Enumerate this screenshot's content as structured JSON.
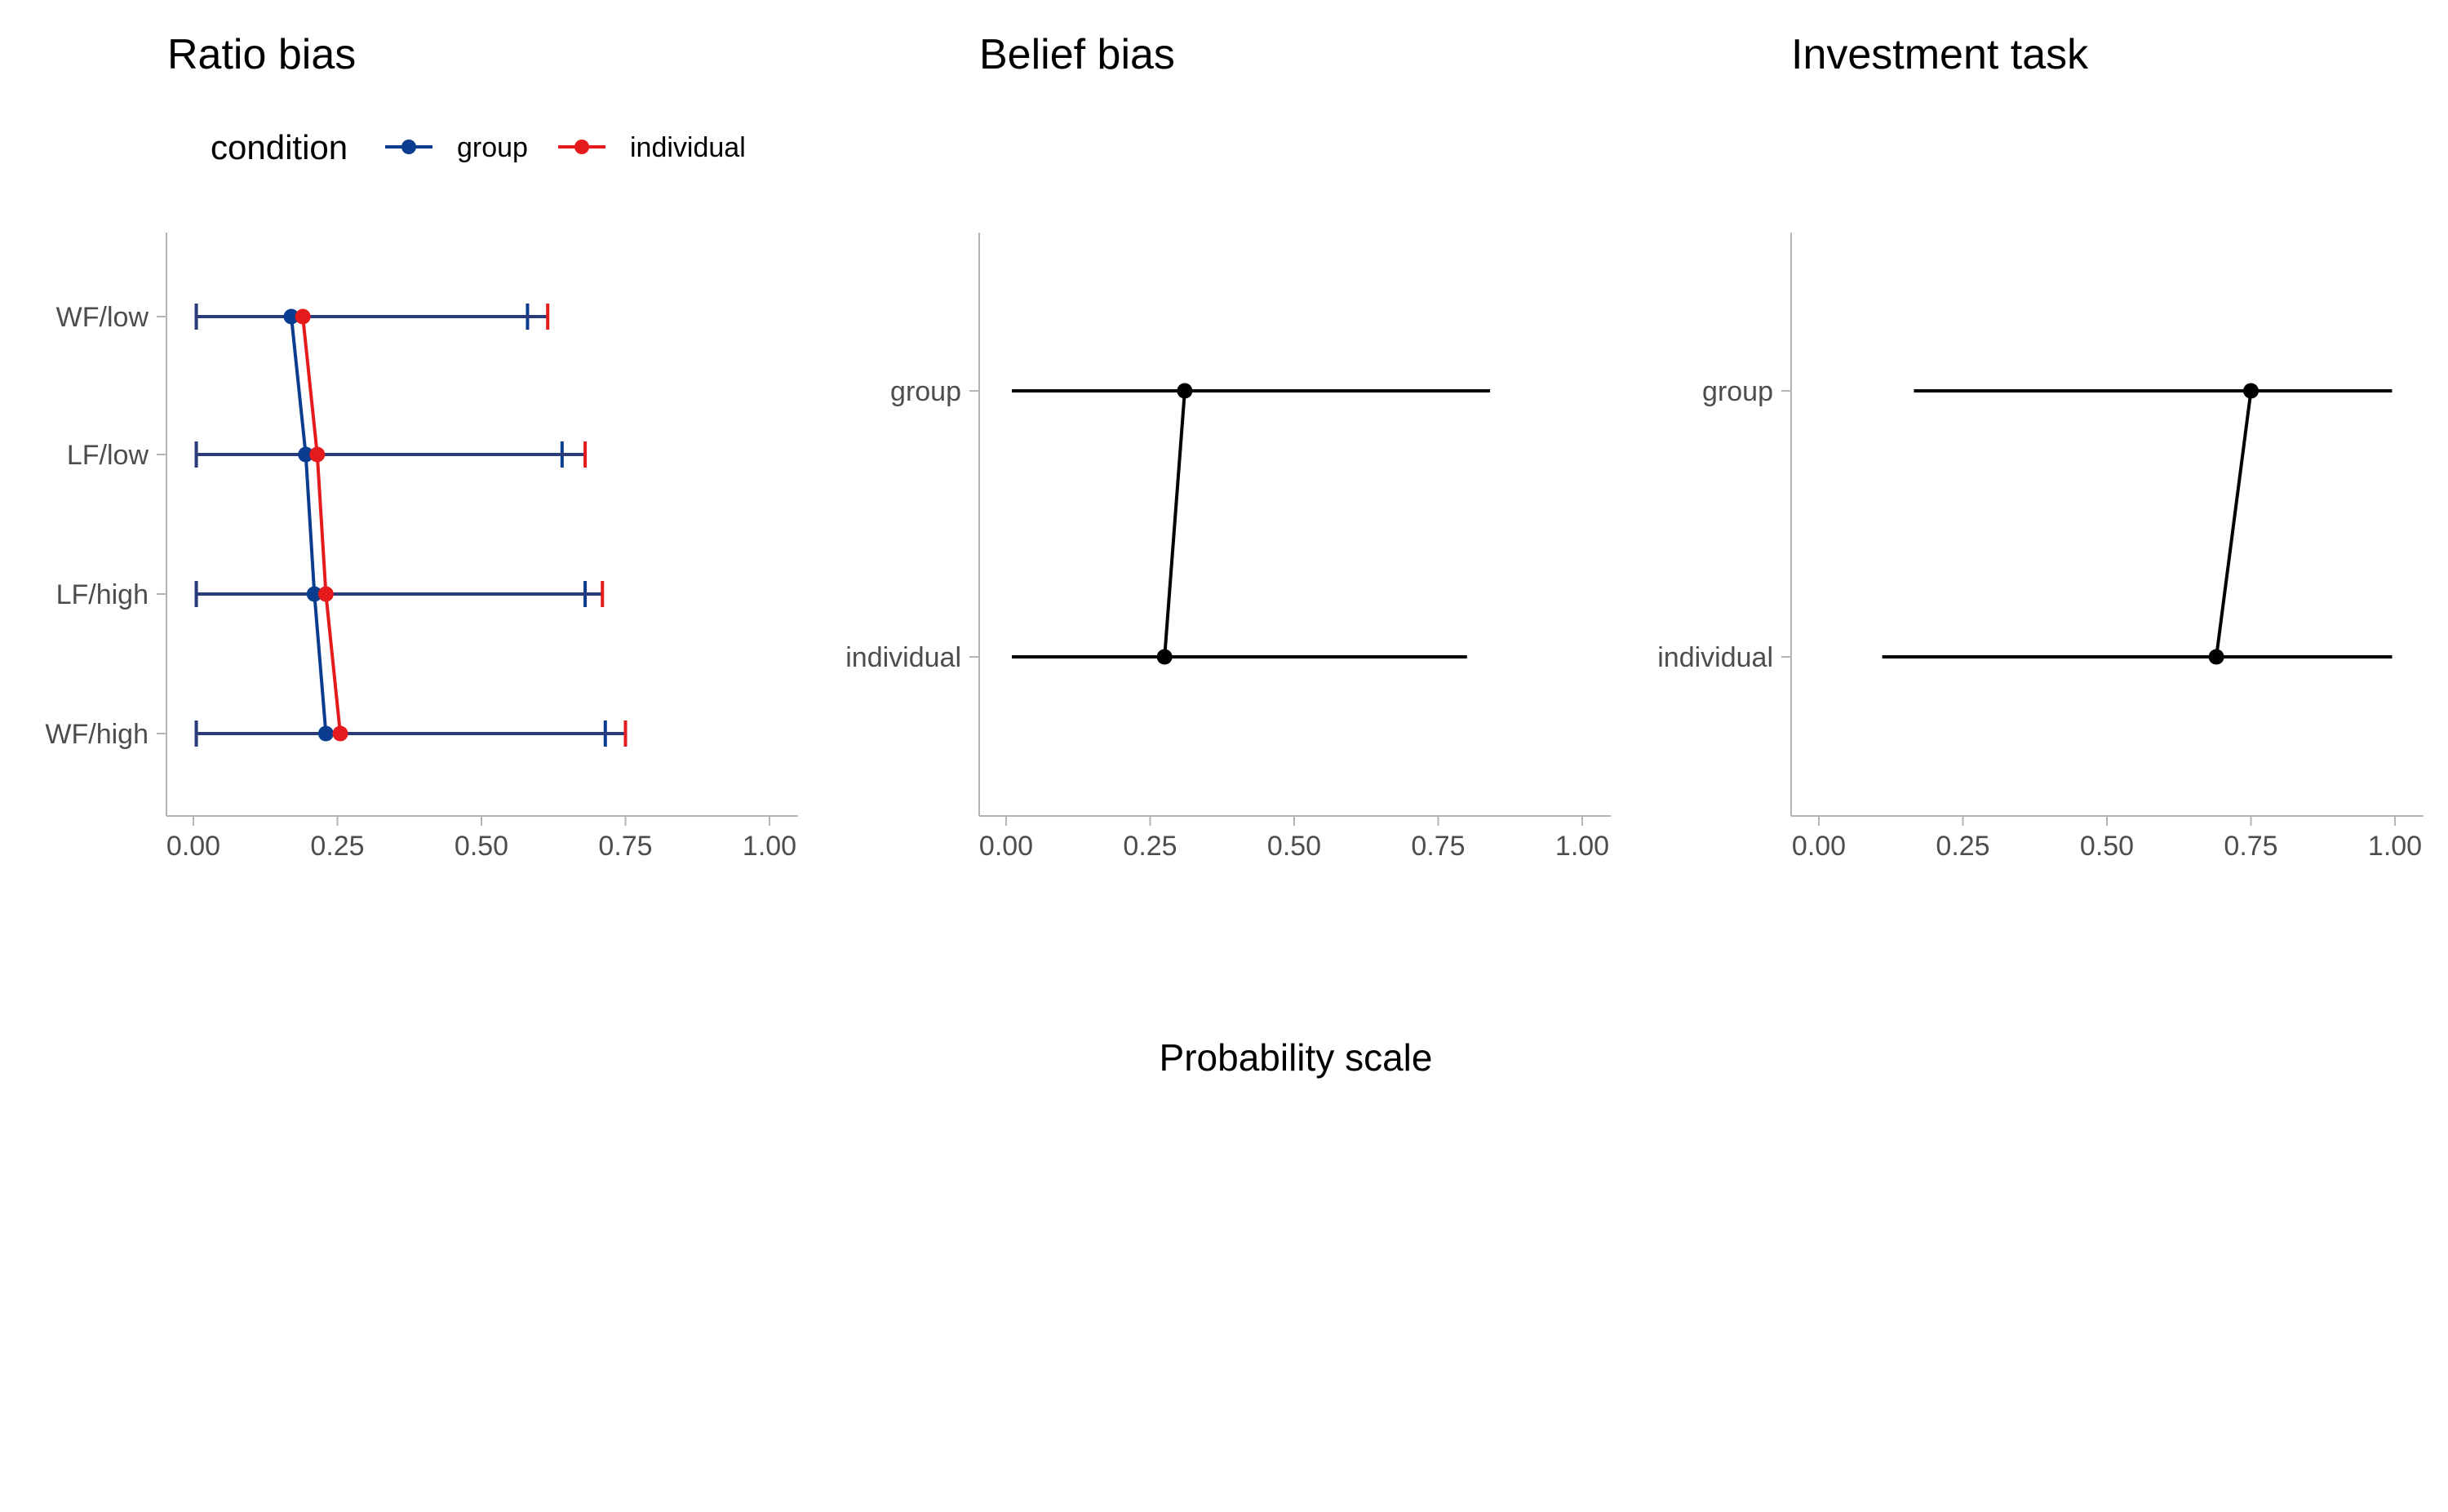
{
  "chart_data": [
    {
      "type": "line",
      "title": "Ratio bias",
      "xlim": [
        0,
        1
      ],
      "x_ticks": [
        "0.00",
        "0.25",
        "0.50",
        "0.75",
        "1.00"
      ],
      "categories": [
        "WF/low",
        "LF/low",
        "LF/high",
        "WF/high"
      ],
      "legend": {
        "title": "condition",
        "placement": "top",
        "entries": [
          "group",
          "individual"
        ]
      },
      "series": [
        {
          "name": "group",
          "color": "#0a3d8f",
          "values": [
            0.17,
            0.195,
            0.21,
            0.23
          ],
          "lower": [
            0.005,
            0.005,
            0.005,
            0.005
          ],
          "upper": [
            0.58,
            0.64,
            0.68,
            0.715
          ]
        },
        {
          "name": "individual",
          "color": "#e41a1c",
          "values": [
            0.19,
            0.215,
            0.23,
            0.255
          ],
          "lower": [
            0.005,
            0.005,
            0.005,
            0.005
          ],
          "upper": [
            0.615,
            0.68,
            0.71,
            0.75
          ]
        }
      ]
    },
    {
      "type": "line",
      "title": "Belief bias",
      "xlim": [
        0,
        1
      ],
      "x_ticks": [
        "0.00",
        "0.25",
        "0.50",
        "0.75",
        "1.00"
      ],
      "categories": [
        "group",
        "individual"
      ],
      "series": [
        {
          "color": "#000000",
          "values": [
            0.31,
            0.275
          ],
          "lower": [
            0.01,
            0.01
          ],
          "upper": [
            0.84,
            0.8
          ]
        }
      ]
    },
    {
      "type": "line",
      "title": "Investment task",
      "xlim": [
        0,
        1
      ],
      "x_ticks": [
        "0.00",
        "0.25",
        "0.50",
        "0.75",
        "1.00"
      ],
      "categories": [
        "group",
        "individual"
      ],
      "series": [
        {
          "color": "#000000",
          "values": [
            0.75,
            0.69
          ],
          "lower": [
            0.165,
            0.11
          ],
          "upper": [
            0.995,
            0.995
          ]
        }
      ]
    }
  ],
  "shared_xlabel": "Probability scale"
}
